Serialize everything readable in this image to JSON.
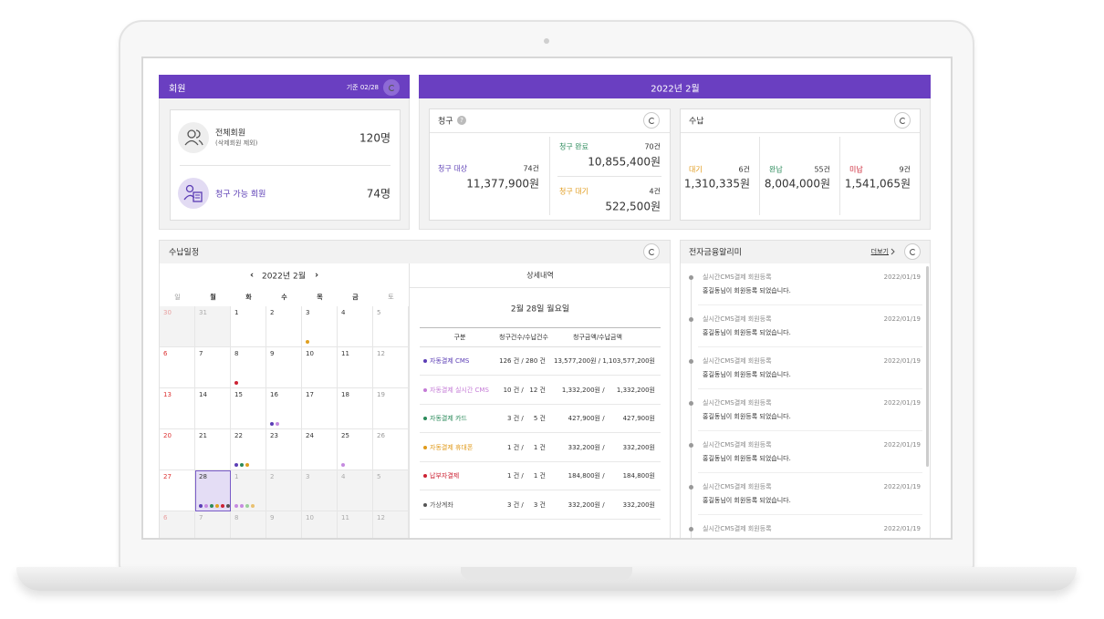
{
  "members": {
    "title": "회원",
    "basis": "기준 02/28",
    "total_label": "전체회원",
    "total_note": "(삭제회원 제외)",
    "total_value": "120명",
    "billable_label": "청구 가능 회원",
    "billable_value": "74명"
  },
  "month_header": "2022년 2월",
  "billing": {
    "title": "청구",
    "help": "?",
    "target_label": "청구 대상",
    "target_count": "74건",
    "target_amount": "11,377,900원",
    "done_label": "청구 완료",
    "done_count": "70건",
    "done_amount": "10,855,400원",
    "wait_label": "청구 대기",
    "wait_count": "4건",
    "wait_amount": "522,500원"
  },
  "receipt": {
    "title": "수납",
    "items": [
      {
        "label": "대기",
        "color": "#e09a1a",
        "count": "6건",
        "amount": "1,310,335원"
      },
      {
        "label": "완납",
        "color": "#2a8a5a",
        "count": "55건",
        "amount": "8,004,000원"
      },
      {
        "label": "미납",
        "color": "#cc2233",
        "count": "9건",
        "amount": "1,541,065원"
      }
    ]
  },
  "schedule": {
    "title": "수납일정",
    "month": "2022년 2월",
    "prev": "‹",
    "next": "›",
    "weekdays": [
      "일",
      "월",
      "화",
      "수",
      "목",
      "금",
      "토"
    ],
    "weeks": [
      [
        {
          "day": 30,
          "muted": true
        },
        {
          "day": 31,
          "muted": true
        },
        {
          "day": 1
        },
        {
          "day": 2
        },
        {
          "day": 3,
          "dots": [
            "#e0a020"
          ]
        },
        {
          "day": 4
        },
        {
          "day": 5
        }
      ],
      [
        {
          "day": 6
        },
        {
          "day": 7
        },
        {
          "day": 8,
          "dots": [
            "#cc2233"
          ]
        },
        {
          "day": 9
        },
        {
          "day": 10
        },
        {
          "day": 11
        },
        {
          "day": 12
        }
      ],
      [
        {
          "day": 13
        },
        {
          "day": 14
        },
        {
          "day": 15
        },
        {
          "day": 16,
          "dots": [
            "#5b3db5",
            "#c58be0"
          ]
        },
        {
          "day": 17
        },
        {
          "day": 18
        },
        {
          "day": 19
        }
      ],
      [
        {
          "day": 20
        },
        {
          "day": 21
        },
        {
          "day": 22,
          "dots": [
            "#5b3db5",
            "#2a8a5a",
            "#e0a020"
          ]
        },
        {
          "day": 23
        },
        {
          "day": 24
        },
        {
          "day": 25,
          "dots": [
            "#c58be0"
          ]
        },
        {
          "day": 26
        }
      ],
      [
        {
          "day": 27
        },
        {
          "day": 28,
          "selected": true,
          "dots": [
            "#5b3db5",
            "#c58be0",
            "#2a8a5a",
            "#e0a020",
            "#cc2233",
            "#555555"
          ]
        },
        {
          "day": 1,
          "muted": true,
          "dots": [
            "#c58be0",
            "#c58be0",
            "#9ccf9c",
            "#e8c070"
          ]
        },
        {
          "day": 2,
          "muted": true
        },
        {
          "day": 3,
          "muted": true
        },
        {
          "day": 4,
          "muted": true
        },
        {
          "day": 5,
          "muted": true
        }
      ],
      [
        {
          "day": 6,
          "muted": true
        },
        {
          "day": 7,
          "muted": true
        },
        {
          "day": 8,
          "muted": true
        },
        {
          "day": 9,
          "muted": true
        },
        {
          "day": 10,
          "muted": true
        },
        {
          "day": 11,
          "muted": true
        },
        {
          "day": 12,
          "muted": true
        }
      ]
    ]
  },
  "detail": {
    "title": "상세내역",
    "date": "2월 28일 월요일",
    "columns": [
      "구분",
      "청구건수/수납건수",
      "청구금액/수납금액"
    ],
    "rows": [
      {
        "name": "자동결제 CMS",
        "color": "#5b3db5",
        "count": "126 건 / 280 건",
        "amount": "13,577,200원 / 1,103,577,200원"
      },
      {
        "name": "자동결제 실시간 CMS",
        "color": "#c47bd6",
        "count": "10 건 /   12 건",
        "amount": "1,332,200원 /      1,332,200원"
      },
      {
        "name": "자동결제 카드",
        "color": "#2a8a5a",
        "count": "3 건 /     5 건",
        "amount": "427,900원 /         427,900원"
      },
      {
        "name": "자동결제 휴대폰",
        "color": "#e09a1a",
        "count": "1 건 /     1 건",
        "amount": "332,200원 /         332,200원"
      },
      {
        "name": "납부자결제",
        "color": "#cc2233",
        "count": "1 건 /     1 건",
        "amount": "184,800원 /         184,800원"
      },
      {
        "name": "가상계좌",
        "color": "#555555",
        "count": "3 건 /     3 건",
        "amount": "332,200원 /         332,200원"
      }
    ]
  },
  "notices": {
    "title": "전자금융알리미",
    "more": "더보기",
    "items": [
      {
        "title": "실시간CMS결제 회원등록",
        "date": "2022/01/19",
        "text": "홍길동님이 회원등록 되었습니다."
      },
      {
        "title": "실시간CMS결제 회원등록",
        "date": "2022/01/19",
        "text": "홍길동님이 회원등록 되었습니다."
      },
      {
        "title": "실시간CMS결제 회원등록",
        "date": "2022/01/19",
        "text": "홍길동님이 회원등록 되었습니다."
      },
      {
        "title": "실시간CMS결제 회원등록",
        "date": "2022/01/19",
        "text": "홍길동님이 회원등록 되었습니다."
      },
      {
        "title": "실시간CMS결제 회원등록",
        "date": "2022/01/19",
        "text": "홍길동님이 회원등록 되었습니다."
      },
      {
        "title": "실시간CMS결제 회원등록",
        "date": "2022/01/19",
        "text": "홍길동님이 회원등록 되었습니다."
      },
      {
        "title": "실시간CMS결제 회원등록",
        "date": "2022/01/19"
      }
    ]
  }
}
